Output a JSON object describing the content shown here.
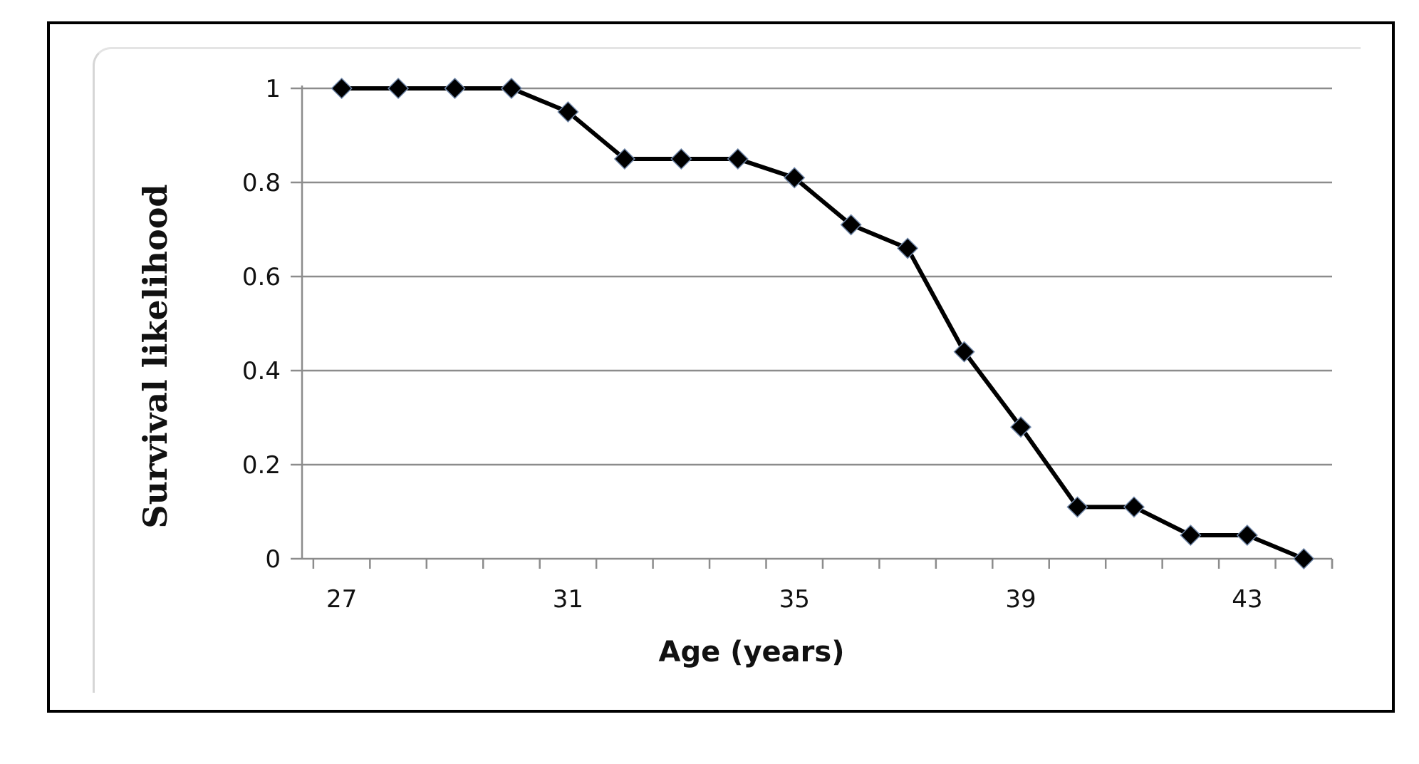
{
  "chart_data": {
    "type": "line",
    "title": "",
    "xlabel": "Age (years)",
    "ylabel": "Survival  likelihood",
    "x": [
      27,
      28,
      29,
      30,
      31,
      32,
      33,
      34,
      35,
      36,
      37,
      38,
      39,
      40,
      41,
      42,
      43,
      44
    ],
    "xlim": [
      26.3,
      44.5
    ],
    "x_tick_labels": [
      "27",
      "31",
      "35",
      "39",
      "43"
    ],
    "y_ticks": [
      0,
      0.2,
      0.4,
      0.6,
      0.8,
      1
    ],
    "y_tick_labels": [
      "0",
      "0.2",
      "0.4",
      "0.6",
      "0.8",
      "1"
    ],
    "ylim": [
      0,
      1
    ],
    "grid": "horizontal",
    "series": [
      {
        "values": [
          1,
          1,
          1,
          1,
          0.95,
          0.85,
          0.85,
          0.85,
          0.81,
          0.71,
          0.66,
          0.44,
          0.28,
          0.11,
          0.11,
          0.05,
          0.05,
          0
        ],
        "color": "#000000",
        "marker": "diamond"
      }
    ]
  }
}
